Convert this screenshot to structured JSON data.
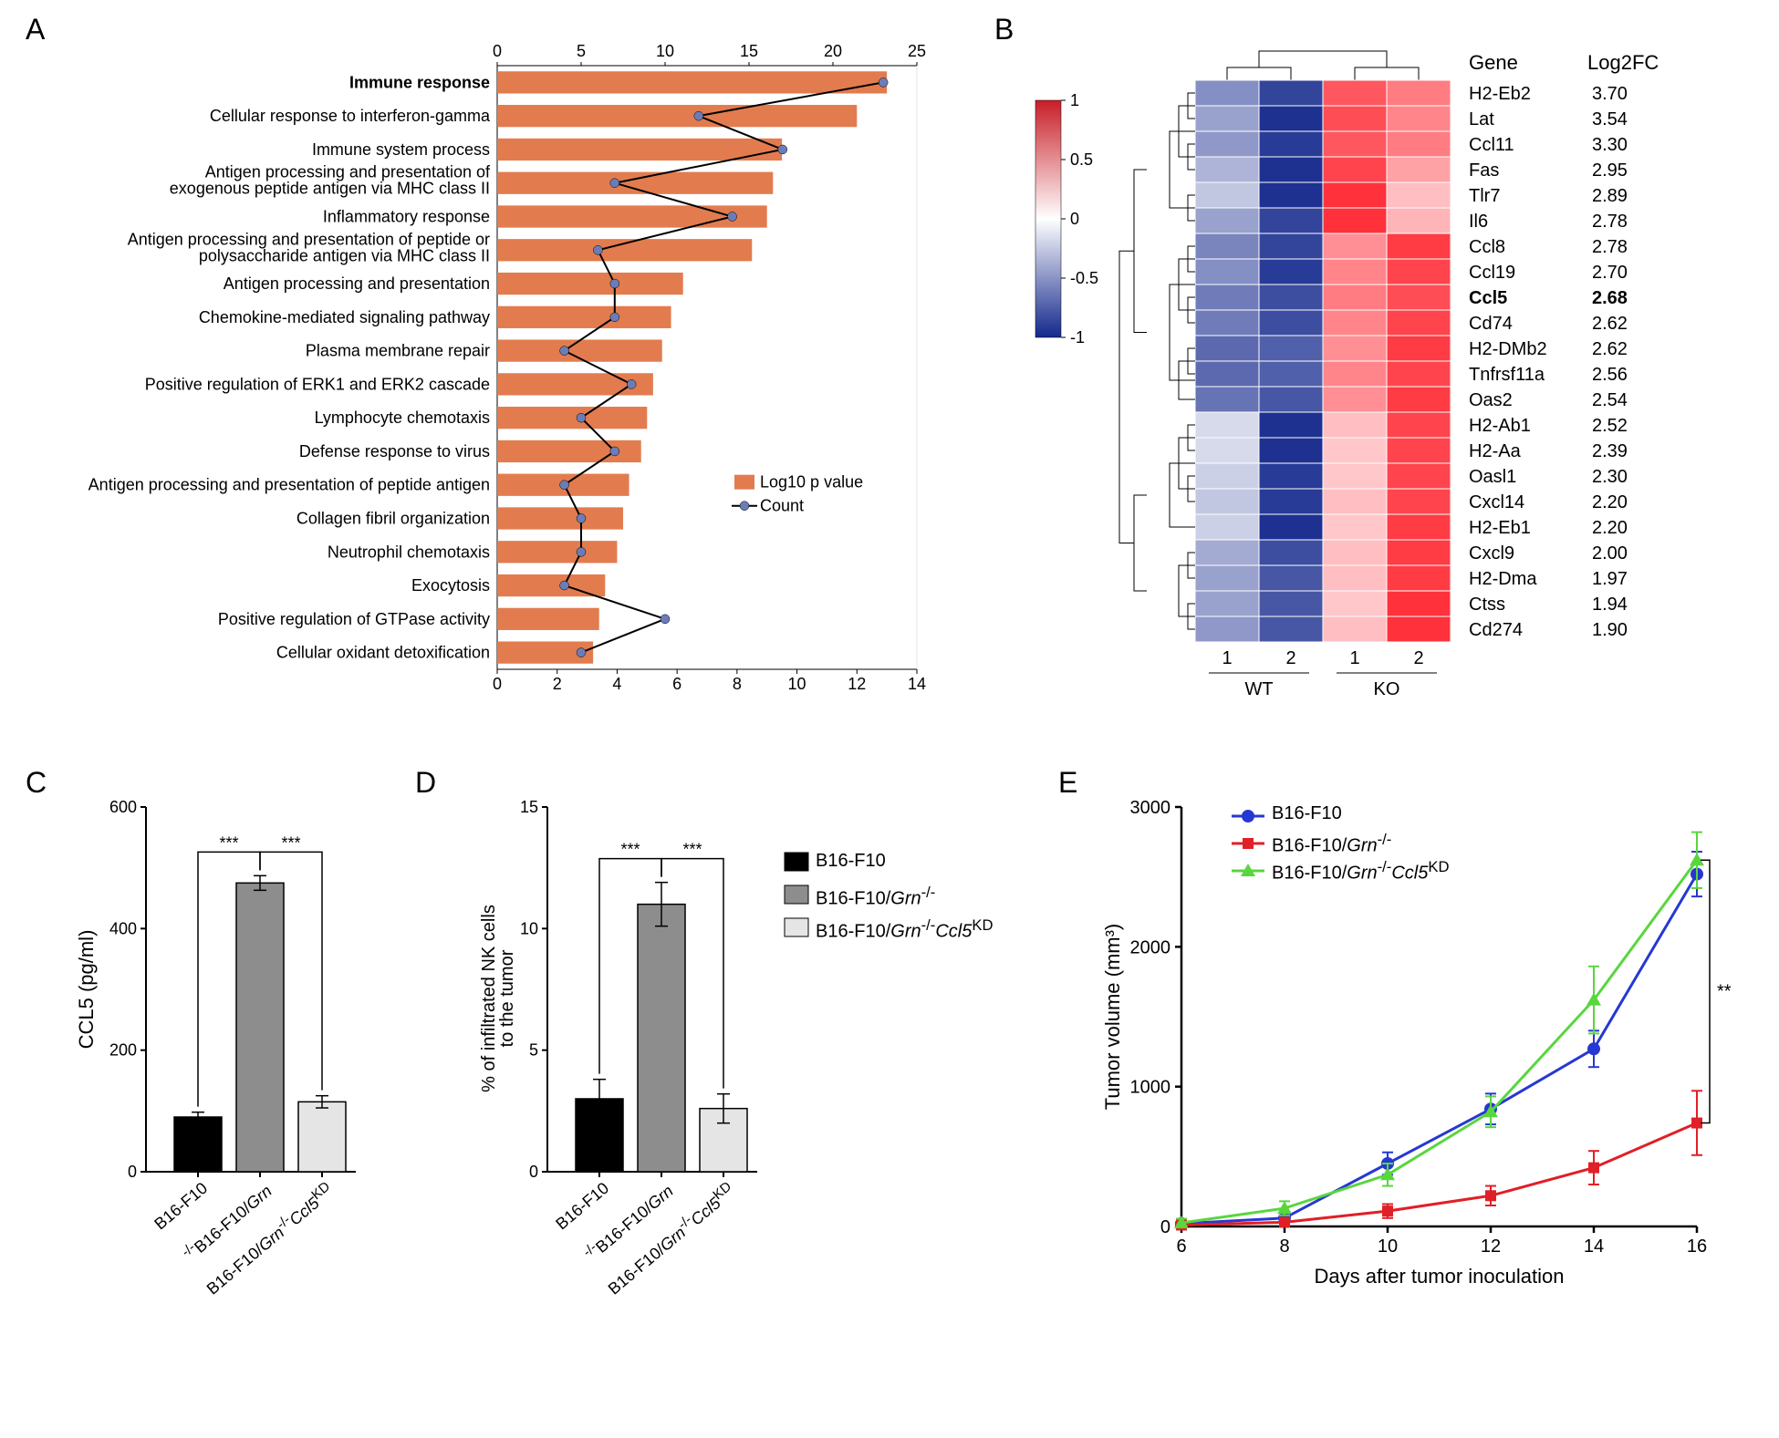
{
  "panelA": {
    "label": "A",
    "xtop": {
      "ticks": [
        0,
        5,
        10,
        15,
        20,
        25
      ]
    },
    "xbottom": {
      "ticks": [
        0,
        2,
        4,
        6,
        8,
        10,
        12,
        14
      ]
    },
    "bar_color": "#e27c4f",
    "marker_color": "#6b7db8",
    "line_color": "#000000",
    "legend": {
      "bar": "Log10 p value",
      "line": "Count"
    },
    "rows": [
      {
        "label": "Immune response",
        "bold": true,
        "count": 23,
        "logp": 13
      },
      {
        "label": "Cellular response to interferon-gamma",
        "count": 12,
        "logp": 12
      },
      {
        "label": "Immune system process",
        "count": 17,
        "logp": 9.5
      },
      {
        "label": "Antigen processing and presentation of\nexogenous peptide antigen via MHC class II",
        "count": 7,
        "logp": 9.2
      },
      {
        "label": "Inflammatory response",
        "count": 14,
        "logp": 9
      },
      {
        "label": "Antigen processing and presentation of peptide or\npolysaccharide antigen via MHC class II",
        "count": 6,
        "logp": 8.5
      },
      {
        "label": "Antigen processing and presentation",
        "count": 7,
        "logp": 6.2
      },
      {
        "label": "Chemokine-mediated signaling pathway",
        "count": 7,
        "logp": 5.8
      },
      {
        "label": "Plasma membrane repair",
        "count": 4,
        "logp": 5.5
      },
      {
        "label": "Positive regulation of ERK1 and ERK2 cascade",
        "count": 8,
        "logp": 5.2
      },
      {
        "label": "Lymphocyte chemotaxis",
        "count": 5,
        "logp": 5
      },
      {
        "label": "Defense response to virus",
        "count": 7,
        "logp": 4.8
      },
      {
        "label": "Antigen processing and presentation of peptide antigen",
        "count": 4,
        "logp": 4.4
      },
      {
        "label": "Collagen fibril organization",
        "count": 5,
        "logp": 4.2
      },
      {
        "label": "Neutrophil chemotaxis",
        "count": 5,
        "logp": 4
      },
      {
        "label": "Exocytosis",
        "count": 4,
        "logp": 3.6
      },
      {
        "label": "Positive regulation of GTPase activity",
        "count": 10,
        "logp": 3.4
      },
      {
        "label": "Cellular oxidant detoxification",
        "count": 5,
        "logp": 3.2
      }
    ],
    "font_label": 18,
    "font_tick": 18
  },
  "panelB": {
    "label": "B",
    "header_gene": "Gene",
    "header_fc": "Log2FC",
    "genes": [
      {
        "name": "H2-Eb2",
        "fc": "3.70",
        "vals": [
          -0.6,
          -1.0,
          0.9,
          0.7
        ]
      },
      {
        "name": "Lat",
        "fc": "3.54",
        "vals": [
          -0.5,
          -1.1,
          0.95,
          0.65
        ]
      },
      {
        "name": "Ccl11",
        "fc": "3.30",
        "vals": [
          -0.55,
          -1.05,
          0.9,
          0.7
        ]
      },
      {
        "name": "Fas",
        "fc": "2.95",
        "vals": [
          -0.4,
          -1.1,
          1.0,
          0.5
        ]
      },
      {
        "name": "Tlr7",
        "fc": "2.89",
        "vals": [
          -0.3,
          -1.1,
          1.1,
          0.35
        ]
      },
      {
        "name": "Il6",
        "fc": "2.78",
        "vals": [
          -0.5,
          -1.0,
          1.1,
          0.4
        ]
      },
      {
        "name": "Ccl8",
        "fc": "2.78",
        "vals": [
          -0.65,
          -1.0,
          0.6,
          1.05
        ]
      },
      {
        "name": "Ccl19",
        "fc": "2.70",
        "vals": [
          -0.6,
          -1.05,
          0.65,
          1.0
        ]
      },
      {
        "name": "Ccl5",
        "fc": "2.68",
        "vals": [
          -0.7,
          -0.95,
          0.7,
          0.95
        ],
        "bold": true
      },
      {
        "name": "Cd74",
        "fc": "2.62",
        "vals": [
          -0.7,
          -0.95,
          0.65,
          1.0
        ]
      },
      {
        "name": "H2-DMb2",
        "fc": "2.62",
        "vals": [
          -0.8,
          -0.85,
          0.6,
          1.05
        ]
      },
      {
        "name": "Tnfrsf11a",
        "fc": "2.56",
        "vals": [
          -0.8,
          -0.85,
          0.65,
          1.0
        ]
      },
      {
        "name": "Oas2",
        "fc": "2.54",
        "vals": [
          -0.75,
          -0.9,
          0.6,
          1.05
        ]
      },
      {
        "name": "H2-Ab1",
        "fc": "2.52",
        "vals": [
          -0.2,
          -1.1,
          0.35,
          1.0
        ]
      },
      {
        "name": "H2-Aa",
        "fc": "2.39",
        "vals": [
          -0.2,
          -1.1,
          0.3,
          1.0
        ]
      },
      {
        "name": "Oasl1",
        "fc": "2.30",
        "vals": [
          -0.25,
          -1.05,
          0.3,
          1.0
        ]
      },
      {
        "name": "Cxcl14",
        "fc": "2.20",
        "vals": [
          -0.3,
          -1.05,
          0.35,
          1.0
        ]
      },
      {
        "name": "H2-Eb1",
        "fc": "2.20",
        "vals": [
          -0.25,
          -1.1,
          0.3,
          1.05
        ]
      },
      {
        "name": "Cxcl9",
        "fc": "2.00",
        "vals": [
          -0.45,
          -0.95,
          0.35,
          1.05
        ]
      },
      {
        "name": "H2-Dma",
        "fc": "1.97",
        "vals": [
          -0.5,
          -0.9,
          0.35,
          1.05
        ]
      },
      {
        "name": "Ctss",
        "fc": "1.94",
        "vals": [
          -0.5,
          -0.9,
          0.3,
          1.1
        ]
      },
      {
        "name": "Cd274",
        "fc": "1.90",
        "vals": [
          -0.55,
          -0.9,
          0.35,
          1.1
        ]
      }
    ],
    "col_labels": [
      "1",
      "2",
      "1",
      "2"
    ],
    "group_labels": [
      "WT",
      "KO"
    ],
    "colorbar": {
      "ticks": [
        1,
        0.5,
        0,
        -0.5,
        -1
      ]
    },
    "font_gene": 20,
    "font_header": 22
  },
  "panelC": {
    "label": "C",
    "ylabel": "CCL5 (pg/ml)",
    "yticks": [
      0,
      200,
      400,
      600
    ],
    "bars": [
      {
        "label": "B16-F10",
        "value": 90,
        "err": 8,
        "fill": "#000000"
      },
      {
        "label": "B16-F10/Grn⁻/⁻",
        "value": 475,
        "err": 12,
        "fill": "#8d8d8d"
      },
      {
        "label": "B16-F10/Grn⁻/⁻Ccl5ᴷᴰ",
        "value": 115,
        "err": 10,
        "fill": "#e5e5e5"
      }
    ],
    "sig": "***",
    "font_tick": 18,
    "font_ylabel": 22
  },
  "panelD": {
    "label": "D",
    "ylabel": "% of infiltrated NK cells\nto the tumor",
    "yticks": [
      0,
      5,
      10,
      15
    ],
    "bars": [
      {
        "label": "B16-F10",
        "value": 3.0,
        "err": 0.8,
        "fill": "#000000"
      },
      {
        "label": "B16-F10/Grn⁻/⁻",
        "value": 11.0,
        "err": 0.9,
        "fill": "#8d8d8d"
      },
      {
        "label": "B16-F10/Grn⁻/⁻Ccl5ᴷᴰ",
        "value": 2.6,
        "err": 0.6,
        "fill": "#e5e5e5"
      }
    ],
    "sig": "***",
    "legend": [
      {
        "label": "B16-F10",
        "fill": "#000000"
      },
      {
        "label": "B16-F10/Grn⁻/⁻",
        "fill": "#8d8d8d"
      },
      {
        "label": "B16-F10/Grn⁻/⁻Ccl5ᴷᴰ",
        "fill": "#e5e5e5"
      }
    ],
    "font_tick": 18,
    "font_ylabel": 20
  },
  "panelE": {
    "label": "E",
    "ylabel": "Tumor volume (mm³)",
    "xlabel": "Days after tumor inoculation",
    "xticks": [
      6,
      8,
      10,
      12,
      14,
      16
    ],
    "yticks": [
      0,
      1000,
      2000,
      3000
    ],
    "series": [
      {
        "name": "B16-F10",
        "color": "#2638d2",
        "marker": "circle",
        "points": [
          {
            "x": 6,
            "y": 20,
            "e": 30
          },
          {
            "x": 8,
            "y": 60,
            "e": 40
          },
          {
            "x": 10,
            "y": 450,
            "e": 80
          },
          {
            "x": 12,
            "y": 840,
            "e": 110
          },
          {
            "x": 14,
            "y": 1270,
            "e": 130
          },
          {
            "x": 16,
            "y": 2520,
            "e": 160
          }
        ]
      },
      {
        "name": "B16-F10/Grn⁻/⁻",
        "color": "#e11f26",
        "marker": "square",
        "points": [
          {
            "x": 6,
            "y": 10,
            "e": 20
          },
          {
            "x": 8,
            "y": 30,
            "e": 30
          },
          {
            "x": 10,
            "y": 110,
            "e": 50
          },
          {
            "x": 12,
            "y": 220,
            "e": 70
          },
          {
            "x": 14,
            "y": 420,
            "e": 120
          },
          {
            "x": 16,
            "y": 740,
            "e": 230
          }
        ]
      },
      {
        "name": "B16-F10/Grn⁻/⁻Ccl5ᴷᴰ",
        "color": "#59d63e",
        "marker": "triangle",
        "points": [
          {
            "x": 6,
            "y": 25,
            "e": 30
          },
          {
            "x": 8,
            "y": 130,
            "e": 50
          },
          {
            "x": 10,
            "y": 370,
            "e": 80
          },
          {
            "x": 12,
            "y": 820,
            "e": 110
          },
          {
            "x": 14,
            "y": 1620,
            "e": 240
          },
          {
            "x": 16,
            "y": 2620,
            "e": 200
          }
        ]
      }
    ],
    "sig": "**",
    "font_tick": 20,
    "font_label": 22
  }
}
